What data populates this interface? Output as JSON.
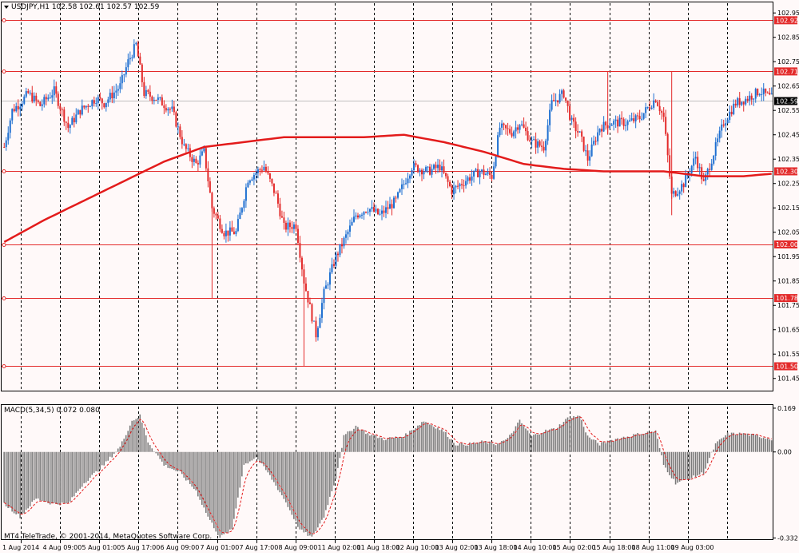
{
  "header": {
    "symbol_line": "USDJPY,H1  102.58 102.61 102.57 102.59",
    "macd_label": "MACD(5,34,5) 0.072 0.080",
    "copyright": "MT4 TeleTrade, © 2001-2014, MetaQuotes Software Corp."
  },
  "colors": {
    "background": "#fff9f9",
    "bull": "#1e6fd1",
    "bear": "#e32a2a",
    "ma": "#e31b1b",
    "level": "#e32a2a",
    "grid": "#000000",
    "histogram": "#7a7a7a",
    "signal": "#e31b1b"
  },
  "price_axis": {
    "min": 101.4,
    "max": 102.99,
    "ticks": [
      "102.95",
      "102.85",
      "102.75",
      "102.65",
      "102.55",
      "102.45",
      "102.35",
      "102.25",
      "102.15",
      "102.05",
      "101.95",
      "101.85",
      "101.75",
      "101.65",
      "101.55",
      "101.45"
    ],
    "current": "102.59"
  },
  "macd_axis": {
    "min": -0.34,
    "max": 0.175,
    "ticks": [
      "0.169",
      "0.00",
      "-0.332"
    ]
  },
  "time_labels": [
    "1 Aug 2014",
    "4 Aug 09:00",
    "5 Aug 01:00",
    "5 Aug 17:00",
    "6 Aug 09:00",
    "7 Aug 01:00",
    "7 Aug 17:00",
    "8 Aug 09:00",
    "11 Aug 02:00",
    "11 Aug 18:00",
    "12 Aug 10:00",
    "13 Aug 02:00",
    "13 Aug 18:00",
    "14 Aug 10:00",
    "15 Aug 02:00",
    "15 Aug 18:00",
    "18 Aug 11:00",
    "19 Aug 03:00"
  ],
  "chart_data": {
    "type": "candlestick",
    "symbol": "USDJPY",
    "timeframe": "H1",
    "horizontal_levels": [
      "102.92",
      "102.71",
      "102.30",
      "102.00",
      "101.78",
      "101.50"
    ],
    "close_anchors": [
      [
        0,
        102.4
      ],
      [
        4,
        102.55
      ],
      [
        8,
        102.58
      ],
      [
        12,
        102.62
      ],
      [
        18,
        102.57
      ],
      [
        25,
        102.63
      ],
      [
        32,
        102.48
      ],
      [
        38,
        102.55
      ],
      [
        46,
        102.6
      ],
      [
        50,
        102.58
      ],
      [
        58,
        102.65
      ],
      [
        62,
        102.75
      ],
      [
        66,
        102.82
      ],
      [
        70,
        102.62
      ],
      [
        76,
        102.6
      ],
      [
        84,
        102.55
      ],
      [
        90,
        102.4
      ],
      [
        96,
        102.33
      ],
      [
        100,
        102.38
      ],
      [
        104,
        102.15
      ],
      [
        110,
        102.05
      ],
      [
        116,
        102.05
      ],
      [
        122,
        102.27
      ],
      [
        130,
        102.32
      ],
      [
        136,
        102.2
      ],
      [
        140,
        102.07
      ],
      [
        146,
        102.08
      ],
      [
        150,
        101.85
      ],
      [
        156,
        101.63
      ],
      [
        160,
        101.8
      ],
      [
        166,
        101.95
      ],
      [
        172,
        102.05
      ],
      [
        176,
        102.12
      ],
      [
        182,
        102.15
      ],
      [
        188,
        102.12
      ],
      [
        196,
        102.18
      ],
      [
        204,
        102.32
      ],
      [
        212,
        102.3
      ],
      [
        218,
        102.32
      ],
      [
        224,
        102.22
      ],
      [
        232,
        102.27
      ],
      [
        238,
        102.3
      ],
      [
        244,
        102.28
      ],
      [
        248,
        102.48
      ],
      [
        254,
        102.46
      ],
      [
        258,
        102.5
      ],
      [
        264,
        102.42
      ],
      [
        270,
        102.4
      ],
      [
        274,
        102.58
      ],
      [
        280,
        102.62
      ],
      [
        284,
        102.5
      ],
      [
        288,
        102.45
      ],
      [
        292,
        102.35
      ],
      [
        298,
        102.48
      ],
      [
        304,
        102.5
      ],
      [
        312,
        102.5
      ],
      [
        318,
        102.52
      ],
      [
        326,
        102.6
      ],
      [
        330,
        102.52
      ],
      [
        334,
        102.2
      ],
      [
        340,
        102.25
      ],
      [
        346,
        102.36
      ],
      [
        350,
        102.25
      ],
      [
        354,
        102.35
      ],
      [
        360,
        102.5
      ],
      [
        366,
        102.58
      ],
      [
        372,
        102.6
      ],
      [
        378,
        102.63
      ],
      [
        384,
        102.6
      ]
    ],
    "moving_average": [
      [
        0,
        102.01
      ],
      [
        20,
        102.1
      ],
      [
        40,
        102.18
      ],
      [
        60,
        102.26
      ],
      [
        80,
        102.34
      ],
      [
        100,
        102.4
      ],
      [
        120,
        102.42
      ],
      [
        140,
        102.44
      ],
      [
        160,
        102.44
      ],
      [
        180,
        102.44
      ],
      [
        200,
        102.45
      ],
      [
        220,
        102.42
      ],
      [
        240,
        102.38
      ],
      [
        260,
        102.33
      ],
      [
        280,
        102.31
      ],
      [
        300,
        102.3
      ],
      [
        330,
        102.3
      ],
      [
        350,
        102.28
      ],
      [
        370,
        102.28
      ],
      [
        384,
        102.29
      ]
    ],
    "macd_anchors": [
      [
        0,
        -0.2
      ],
      [
        8,
        -0.25
      ],
      [
        16,
        -0.18
      ],
      [
        24,
        -0.2
      ],
      [
        32,
        -0.2
      ],
      [
        40,
        -0.12
      ],
      [
        50,
        -0.05
      ],
      [
        58,
        0.02
      ],
      [
        64,
        0.12
      ],
      [
        68,
        0.14
      ],
      [
        72,
        0.04
      ],
      [
        80,
        -0.05
      ],
      [
        88,
        -0.08
      ],
      [
        96,
        -0.15
      ],
      [
        102,
        -0.25
      ],
      [
        108,
        -0.33
      ],
      [
        114,
        -0.3
      ],
      [
        120,
        -0.05
      ],
      [
        126,
        -0.02
      ],
      [
        132,
        -0.08
      ],
      [
        140,
        -0.18
      ],
      [
        148,
        -0.3
      ],
      [
        154,
        -0.33
      ],
      [
        160,
        -0.25
      ],
      [
        166,
        -0.1
      ],
      [
        170,
        0.06
      ],
      [
        176,
        0.1
      ],
      [
        182,
        0.07
      ],
      [
        190,
        0.05
      ],
      [
        200,
        0.06
      ],
      [
        210,
        0.12
      ],
      [
        220,
        0.08
      ],
      [
        226,
        0.03
      ],
      [
        232,
        0.03
      ],
      [
        240,
        0.04
      ],
      [
        246,
        0.03
      ],
      [
        252,
        0.05
      ],
      [
        258,
        0.12
      ],
      [
        264,
        0.06
      ],
      [
        270,
        0.08
      ],
      [
        276,
        0.09
      ],
      [
        282,
        0.13
      ],
      [
        288,
        0.14
      ],
      [
        292,
        0.06
      ],
      [
        298,
        0.03
      ],
      [
        306,
        0.05
      ],
      [
        312,
        0.06
      ],
      [
        318,
        0.07
      ],
      [
        326,
        0.08
      ],
      [
        330,
        -0.05
      ],
      [
        336,
        -0.12
      ],
      [
        344,
        -0.1
      ],
      [
        350,
        -0.08
      ],
      [
        356,
        0.03
      ],
      [
        362,
        0.07
      ],
      [
        370,
        0.07
      ],
      [
        378,
        0.06
      ],
      [
        384,
        0.05
      ]
    ],
    "bar_count": 385
  }
}
